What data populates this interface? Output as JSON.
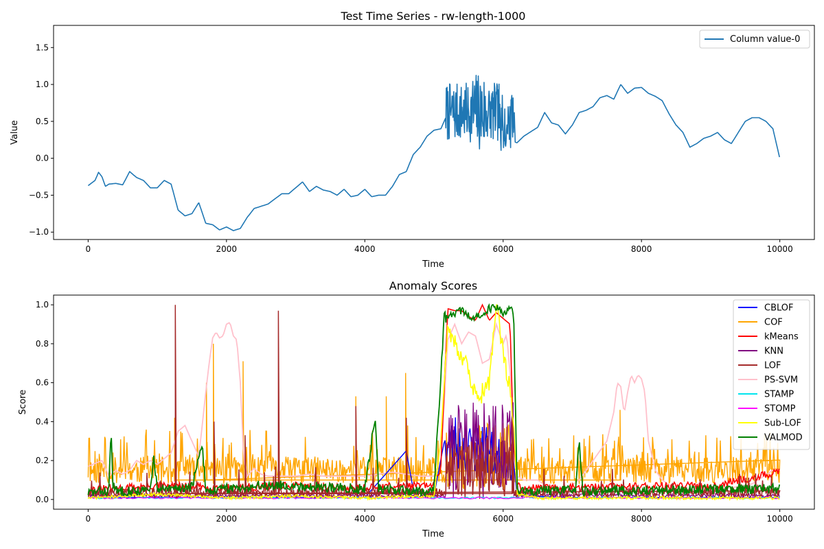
{
  "chart_data": [
    {
      "type": "line",
      "title": "Test Time Series - rw-length-1000",
      "xlabel": "Time",
      "ylabel": "Value",
      "xlim": [
        -500,
        10500
      ],
      "ylim": [
        -1.1,
        1.8
      ],
      "xticks": [
        0,
        2000,
        4000,
        6000,
        8000,
        10000
      ],
      "yticks": [
        -1.0,
        -0.5,
        0.0,
        0.5,
        1.0,
        1.5
      ],
      "legend_position": "top-right",
      "series": [
        {
          "name": "Column value-0",
          "color": "#1f77b4",
          "x": [
            0,
            100,
            150,
            200,
            250,
            300,
            400,
            500,
            600,
            700,
            800,
            900,
            1000,
            1100,
            1200,
            1300,
            1400,
            1500,
            1600,
            1700,
            1800,
            1900,
            2000,
            2100,
            2200,
            2300,
            2400,
            2500,
            2600,
            2700,
            2800,
            2900,
            3000,
            3100,
            3200,
            3300,
            3400,
            3500,
            3600,
            3700,
            3800,
            3900,
            4000,
            4100,
            4200,
            4300,
            4400,
            4500,
            4600,
            4700,
            4800,
            4900,
            5000,
            5100,
            5170,
            6170,
            6200,
            6300,
            6400,
            6500,
            6600,
            6700,
            6800,
            6900,
            7000,
            7100,
            7200,
            7300,
            7400,
            7500,
            7600,
            7700,
            7800,
            7900,
            8000,
            8100,
            8200,
            8300,
            8400,
            8500,
            8600,
            8700,
            8800,
            8900,
            9000,
            9100,
            9200,
            9300,
            9400,
            9500,
            9600,
            9700,
            9800,
            9900,
            10000
          ],
          "y": [
            -0.37,
            -0.3,
            -0.19,
            -0.25,
            -0.38,
            -0.35,
            -0.34,
            -0.36,
            -0.18,
            -0.26,
            -0.3,
            -0.4,
            -0.4,
            -0.3,
            -0.35,
            -0.7,
            -0.78,
            -0.75,
            -0.6,
            -0.88,
            -0.9,
            -0.97,
            -0.93,
            -0.98,
            -0.95,
            -0.8,
            -0.68,
            -0.65,
            -0.62,
            -0.55,
            -0.48,
            -0.48,
            -0.4,
            -0.32,
            -0.45,
            -0.38,
            -0.43,
            -0.45,
            -0.5,
            -0.42,
            -0.52,
            -0.5,
            -0.42,
            -0.52,
            -0.5,
            -0.5,
            -0.38,
            -0.22,
            -0.18,
            0.05,
            0.15,
            0.3,
            0.38,
            0.4,
            0.55,
            0.22,
            0.21,
            0.3,
            0.36,
            0.42,
            0.62,
            0.48,
            0.45,
            0.33,
            0.45,
            0.62,
            0.65,
            0.7,
            0.82,
            0.85,
            0.8,
            1.0,
            0.88,
            0.95,
            0.96,
            0.88,
            0.84,
            0.78,
            0.6,
            0.45,
            0.35,
            0.15,
            0.2,
            0.27,
            0.3,
            0.35,
            0.25,
            0.2,
            0.35,
            0.5,
            0.55,
            0.55,
            0.5,
            0.4,
            0.0
          ]
        }
      ]
    },
    {
      "type": "line",
      "title": "Anomaly Scores",
      "xlabel": "Time",
      "ylabel": "Score",
      "xlim": [
        -500,
        10500
      ],
      "ylim": [
        -0.05,
        1.05
      ],
      "xticks": [
        0,
        2000,
        4000,
        6000,
        8000,
        10000
      ],
      "yticks": [
        0.0,
        0.2,
        0.4,
        0.6,
        0.8,
        1.0
      ],
      "legend_position": "top-right",
      "series": [
        {
          "name": "CBLOF",
          "color": "#0000ff"
        },
        {
          "name": "COF",
          "color": "#ffa500"
        },
        {
          "name": "kMeans",
          "color": "#ff0000"
        },
        {
          "name": "KNN",
          "color": "#800080"
        },
        {
          "name": "LOF",
          "color": "#a52a2a"
        },
        {
          "name": "PS-SVM",
          "color": "#ffc0cb"
        },
        {
          "name": "STAMP",
          "color": "#00e5ee"
        },
        {
          "name": "STOMP",
          "color": "#ff00ff"
        },
        {
          "name": "Sub-LOF",
          "color": "#ffff00"
        },
        {
          "name": "VALMOD",
          "color": "#008000"
        }
      ],
      "ps_svm": {
        "x": [
          0,
          200,
          300,
          400,
          500,
          600,
          700,
          800,
          900,
          1000,
          1100,
          1200,
          1300,
          1400,
          1500,
          1600,
          1700,
          1750,
          1800,
          1850,
          1900,
          1950,
          2000,
          2050,
          2100,
          2150,
          2200,
          2250,
          2300,
          2400,
          2500,
          2600,
          2800,
          3000,
          3200,
          3400,
          3600,
          3800,
          4000,
          4200,
          4400,
          4600,
          4800,
          5000,
          5100,
          5200,
          5300,
          5400,
          5500,
          5600,
          5700,
          5800,
          5900,
          6000,
          6050,
          6100,
          6150,
          6200,
          6300,
          6500,
          6700,
          6900,
          7100,
          7300,
          7500,
          7600,
          7650,
          7700,
          7750,
          7800,
          7850,
          7900,
          7950,
          8000,
          8050,
          8100,
          8200,
          8300,
          8500,
          8700,
          9000,
          9300,
          9600,
          9900,
          10000
        ],
        "y": [
          0.17,
          0.2,
          0.12,
          0.15,
          0.13,
          0.15,
          0.2,
          0.18,
          0.2,
          0.18,
          0.21,
          0.24,
          0.35,
          0.38,
          0.3,
          0.22,
          0.55,
          0.7,
          0.83,
          0.86,
          0.83,
          0.84,
          0.9,
          0.91,
          0.84,
          0.82,
          0.6,
          0.2,
          0.12,
          0.16,
          0.13,
          0.12,
          0.12,
          0.12,
          0.13,
          0.12,
          0.12,
          0.12,
          0.12,
          0.13,
          0.14,
          0.13,
          0.12,
          0.12,
          0.2,
          0.82,
          0.9,
          0.8,
          0.86,
          0.84,
          0.7,
          0.72,
          0.9,
          0.8,
          0.85,
          0.65,
          0.25,
          0.12,
          0.1,
          0.1,
          0.05,
          0.05,
          0.1,
          0.2,
          0.3,
          0.45,
          0.6,
          0.58,
          0.44,
          0.55,
          0.64,
          0.6,
          0.64,
          0.62,
          0.55,
          0.3,
          0.15,
          0.1,
          0.05,
          0.05,
          0.06,
          0.06,
          0.08,
          0.15,
          0.15
        ]
      },
      "kmeans": {
        "x": [
          0,
          1000,
          2000,
          3000,
          4000,
          4500,
          5000,
          5100,
          5200,
          5300,
          5400,
          5500,
          5600,
          5700,
          5800,
          5900,
          6000,
          6100,
          6150,
          6200,
          6300,
          7000,
          8000,
          9000,
          10000
        ],
        "y": [
          0.03,
          0.05,
          0.04,
          0.05,
          0.04,
          0.05,
          0.05,
          0.15,
          0.98,
          0.97,
          0.97,
          0.94,
          0.92,
          1.0,
          0.92,
          0.96,
          0.93,
          0.9,
          0.3,
          0.05,
          0.04,
          0.04,
          0.05,
          0.05,
          0.12
        ]
      },
      "sub_lof": {
        "x": [
          0,
          1000,
          2000,
          3000,
          4000,
          5000,
          5100,
          5200,
          5300,
          5400,
          5500,
          5600,
          5650,
          5700,
          5800,
          5900,
          6000,
          6050,
          6100,
          6150,
          6200,
          6500,
          8000,
          10000
        ],
        "y": [
          0.0,
          0.02,
          0.0,
          0.01,
          0.0,
          0.01,
          0.3,
          0.9,
          0.8,
          0.75,
          0.65,
          0.55,
          0.47,
          0.55,
          0.6,
          1.0,
          0.75,
          0.65,
          0.6,
          0.4,
          0.02,
          0.0,
          0.0,
          0.0
        ]
      },
      "cblof": {
        "x": [
          0,
          1000,
          2000,
          3000,
          4000,
          4600,
          4700,
          5000,
          5150,
          5300,
          5500,
          5700,
          5900,
          6100,
          6150,
          6200,
          7000,
          10000
        ],
        "y": [
          0.01,
          0.01,
          0.01,
          0.01,
          0.01,
          0.25,
          0.05,
          0.02,
          0.3,
          0.35,
          0.3,
          0.32,
          0.25,
          0.25,
          0.2,
          0.02,
          0.01,
          0.01
        ]
      },
      "valmod": {
        "x": [
          0,
          300,
          330,
          360,
          400,
          900,
          950,
          1000,
          1500,
          1650,
          1700,
          1750,
          2000,
          2600,
          4000,
          4150,
          4200,
          4500,
          5000,
          5150,
          5250,
          5400,
          5550,
          5700,
          5800,
          5900,
          6000,
          6100,
          6150,
          6200,
          6300,
          7050,
          7100,
          7150,
          7500,
          10000
        ],
        "y": [
          0.01,
          0.02,
          0.34,
          0.05,
          0.02,
          0.02,
          0.2,
          0.02,
          0.04,
          0.25,
          0.03,
          0.02,
          0.03,
          0.05,
          0.03,
          0.4,
          0.03,
          0.02,
          0.02,
          0.92,
          0.95,
          0.97,
          0.93,
          0.95,
          0.98,
          0.99,
          0.96,
          0.98,
          0.97,
          0.03,
          0.02,
          0.02,
          0.28,
          0.02,
          0.02,
          0.03
        ]
      },
      "spikes": {
        "lof": [
          [
            1260,
            1.0
          ],
          [
            2750,
            0.97
          ],
          [
            3870,
            0.48
          ],
          [
            1820,
            0.4
          ],
          [
            2270,
            0.33
          ],
          [
            4600,
            0.42
          ],
          [
            6130,
            0.42
          ]
        ],
        "cof": [
          [
            1710,
            0.6
          ],
          [
            1810,
            0.8
          ],
          [
            2240,
            0.71
          ],
          [
            4590,
            0.65
          ],
          [
            3870,
            0.53
          ],
          [
            4310,
            0.53
          ],
          [
            4620,
            0.38
          ],
          [
            7690,
            0.46
          ],
          [
            1250,
            0.42
          ]
        ]
      }
    }
  ]
}
